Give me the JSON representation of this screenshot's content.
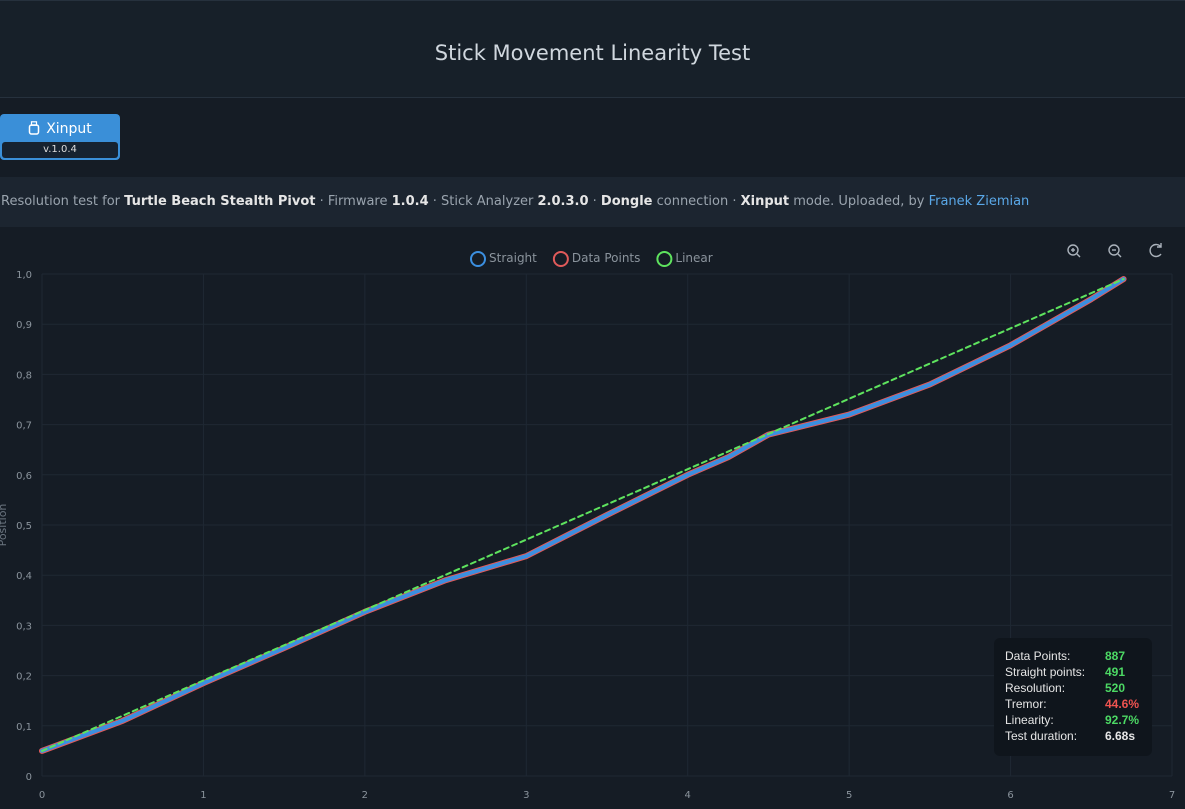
{
  "header": {
    "title": "Stick Movement Linearity Test"
  },
  "badge": {
    "label": "Xinput",
    "version": "v.1.0.4"
  },
  "description": {
    "parts": [
      "Resolution test for ",
      "Turtle Beach Stealth Pivot",
      " · Firmware ",
      "1.0.4",
      " · Stick Analyzer ",
      "2.0.3.0",
      " · ",
      "Dongle",
      " connection · ",
      "Xinput",
      " mode. Uploaded, by ",
      "Franek Ziemian"
    ]
  },
  "chart_data": {
    "type": "line",
    "ylabel": "Position",
    "xlim": [
      0,
      7
    ],
    "ylim": [
      0,
      1
    ],
    "xticks": [
      0,
      1,
      2,
      3,
      4,
      5,
      6,
      7
    ],
    "yticks": [
      0,
      {
        "value": 0.1,
        "label": "0,1"
      },
      {
        "value": 0.2,
        "label": "0,2"
      },
      {
        "value": 0.3,
        "label": "0,3"
      },
      {
        "value": 0.4,
        "label": "0,4"
      },
      {
        "value": 0.5,
        "label": "0,5"
      },
      {
        "value": 0.6,
        "label": "0,6"
      },
      {
        "value": 0.7,
        "label": "0,7"
      },
      {
        "value": 0.8,
        "label": "0,8"
      },
      {
        "value": 0.9,
        "label": "0,9"
      },
      {
        "value": 1,
        "label": "1,0"
      }
    ],
    "grid": true,
    "series": [
      {
        "name": "Straight",
        "color": "#3b8fe0",
        "x": [
          0,
          0.5,
          1,
          1.5,
          2,
          2.5,
          3,
          3.5,
          4,
          4.25,
          4.5,
          5,
          5.5,
          6,
          6.5,
          6.7
        ],
        "values": [
          0.05,
          0.11,
          0.185,
          0.255,
          0.327,
          0.39,
          0.438,
          0.52,
          0.6,
          0.635,
          0.68,
          0.72,
          0.78,
          0.858,
          0.95,
          0.99
        ]
      },
      {
        "name": "Data Points",
        "color": "#e05a5a",
        "x": [
          0,
          0.5,
          1,
          1.5,
          2,
          2.5,
          3,
          3.5,
          4,
          4.25,
          4.5,
          5,
          5.5,
          6,
          6.5,
          6.7
        ],
        "values": [
          0.05,
          0.11,
          0.185,
          0.255,
          0.327,
          0.39,
          0.438,
          0.52,
          0.6,
          0.635,
          0.68,
          0.72,
          0.78,
          0.858,
          0.95,
          0.99
        ]
      },
      {
        "name": "Linear",
        "color": "#5ee35e",
        "dashed": true,
        "x": [
          0,
          6.7
        ],
        "values": [
          0.05,
          0.99
        ]
      }
    ]
  },
  "stats": [
    {
      "label": "Data Points:",
      "value": 887,
      "color": "#4cd964"
    },
    {
      "label": "Straight points:",
      "value": 491,
      "color": "#4cd964"
    },
    {
      "label": "Resolution:",
      "value": 520,
      "color": "#4cd964"
    },
    {
      "label": "Tremor:",
      "value": "44.6%",
      "color": "#ef5350"
    },
    {
      "label": "Linearity:",
      "value": "92.7%",
      "color": "#4cd964"
    },
    {
      "label": "Test duration:",
      "value": "6.68s",
      "color": "#e6e6e6"
    }
  ]
}
